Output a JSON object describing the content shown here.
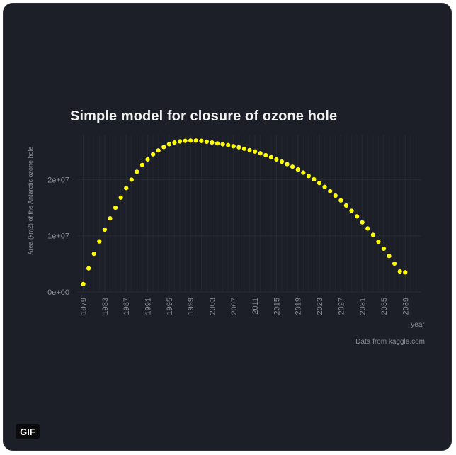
{
  "badge": "GIF",
  "colors": {
    "background": "#1c1f27",
    "point": "#ffff00",
    "text": "#f2f2f2",
    "axis_text": "#8a8d96",
    "grid": "#262a33"
  },
  "chart_data": {
    "type": "scatter",
    "title": "Simple model for closure of ozone hole",
    "xlabel": "year",
    "ylabel": "Area (km2) of the Antarctic ozone hole",
    "caption": "Data from kaggle.com",
    "xlim": [
      1978,
      2042
    ],
    "ylim": [
      0,
      28000000
    ],
    "y_ticks": [
      0,
      10000000,
      20000000
    ],
    "y_tick_labels": [
      "0e+00",
      "1e+07",
      "2e+07"
    ],
    "x_ticks": [
      1979,
      1983,
      1987,
      1991,
      1995,
      1999,
      2003,
      2007,
      2011,
      2015,
      2019,
      2023,
      2027,
      2031,
      2035,
      2039
    ],
    "x_tick_labels": [
      "1979",
      "1983",
      "1987",
      "1991",
      "1995",
      "1999",
      "2003",
      "2007",
      "2011",
      "2015",
      "2019",
      "2023",
      "2027",
      "2031",
      "2035",
      "2039"
    ],
    "grid": true,
    "legend": "none",
    "x": [
      1979,
      1980,
      1981,
      1982,
      1983,
      1984,
      1985,
      1986,
      1987,
      1988,
      1989,
      1990,
      1991,
      1992,
      1993,
      1994,
      1995,
      1996,
      1997,
      1998,
      1999,
      2000,
      2001,
      2002,
      2003,
      2004,
      2005,
      2006,
      2007,
      2008,
      2009,
      2010,
      2011,
      2012,
      2013,
      2014,
      2015,
      2016,
      2017,
      2018,
      2019,
      2020,
      2021,
      2022,
      2023,
      2024,
      2025,
      2026,
      2027,
      2028,
      2029,
      2030,
      2031,
      2032,
      2033,
      2034,
      2035,
      2036,
      2037,
      2038,
      2039
    ],
    "y": [
      1400000,
      4200000,
      6800000,
      9000000,
      11100000,
      13100000,
      15000000,
      16800000,
      18500000,
      20000000,
      21400000,
      22600000,
      23600000,
      24500000,
      25200000,
      25800000,
      26300000,
      26600000,
      26800000,
      26900000,
      26950000,
      26950000,
      26900000,
      26750000,
      26600000,
      26450000,
      26300000,
      26150000,
      25950000,
      25750000,
      25500000,
      25250000,
      25000000,
      24700000,
      24350000,
      24000000,
      23600000,
      23200000,
      22750000,
      22300000,
      21800000,
      21250000,
      20650000,
      20050000,
      19400000,
      18700000,
      17950000,
      17150000,
      16300000,
      15400000,
      14450000,
      13450000,
      12400000,
      11300000,
      10150000,
      8950000,
      7700000,
      6400000,
      5050000,
      3650000,
      3500000
    ]
  }
}
